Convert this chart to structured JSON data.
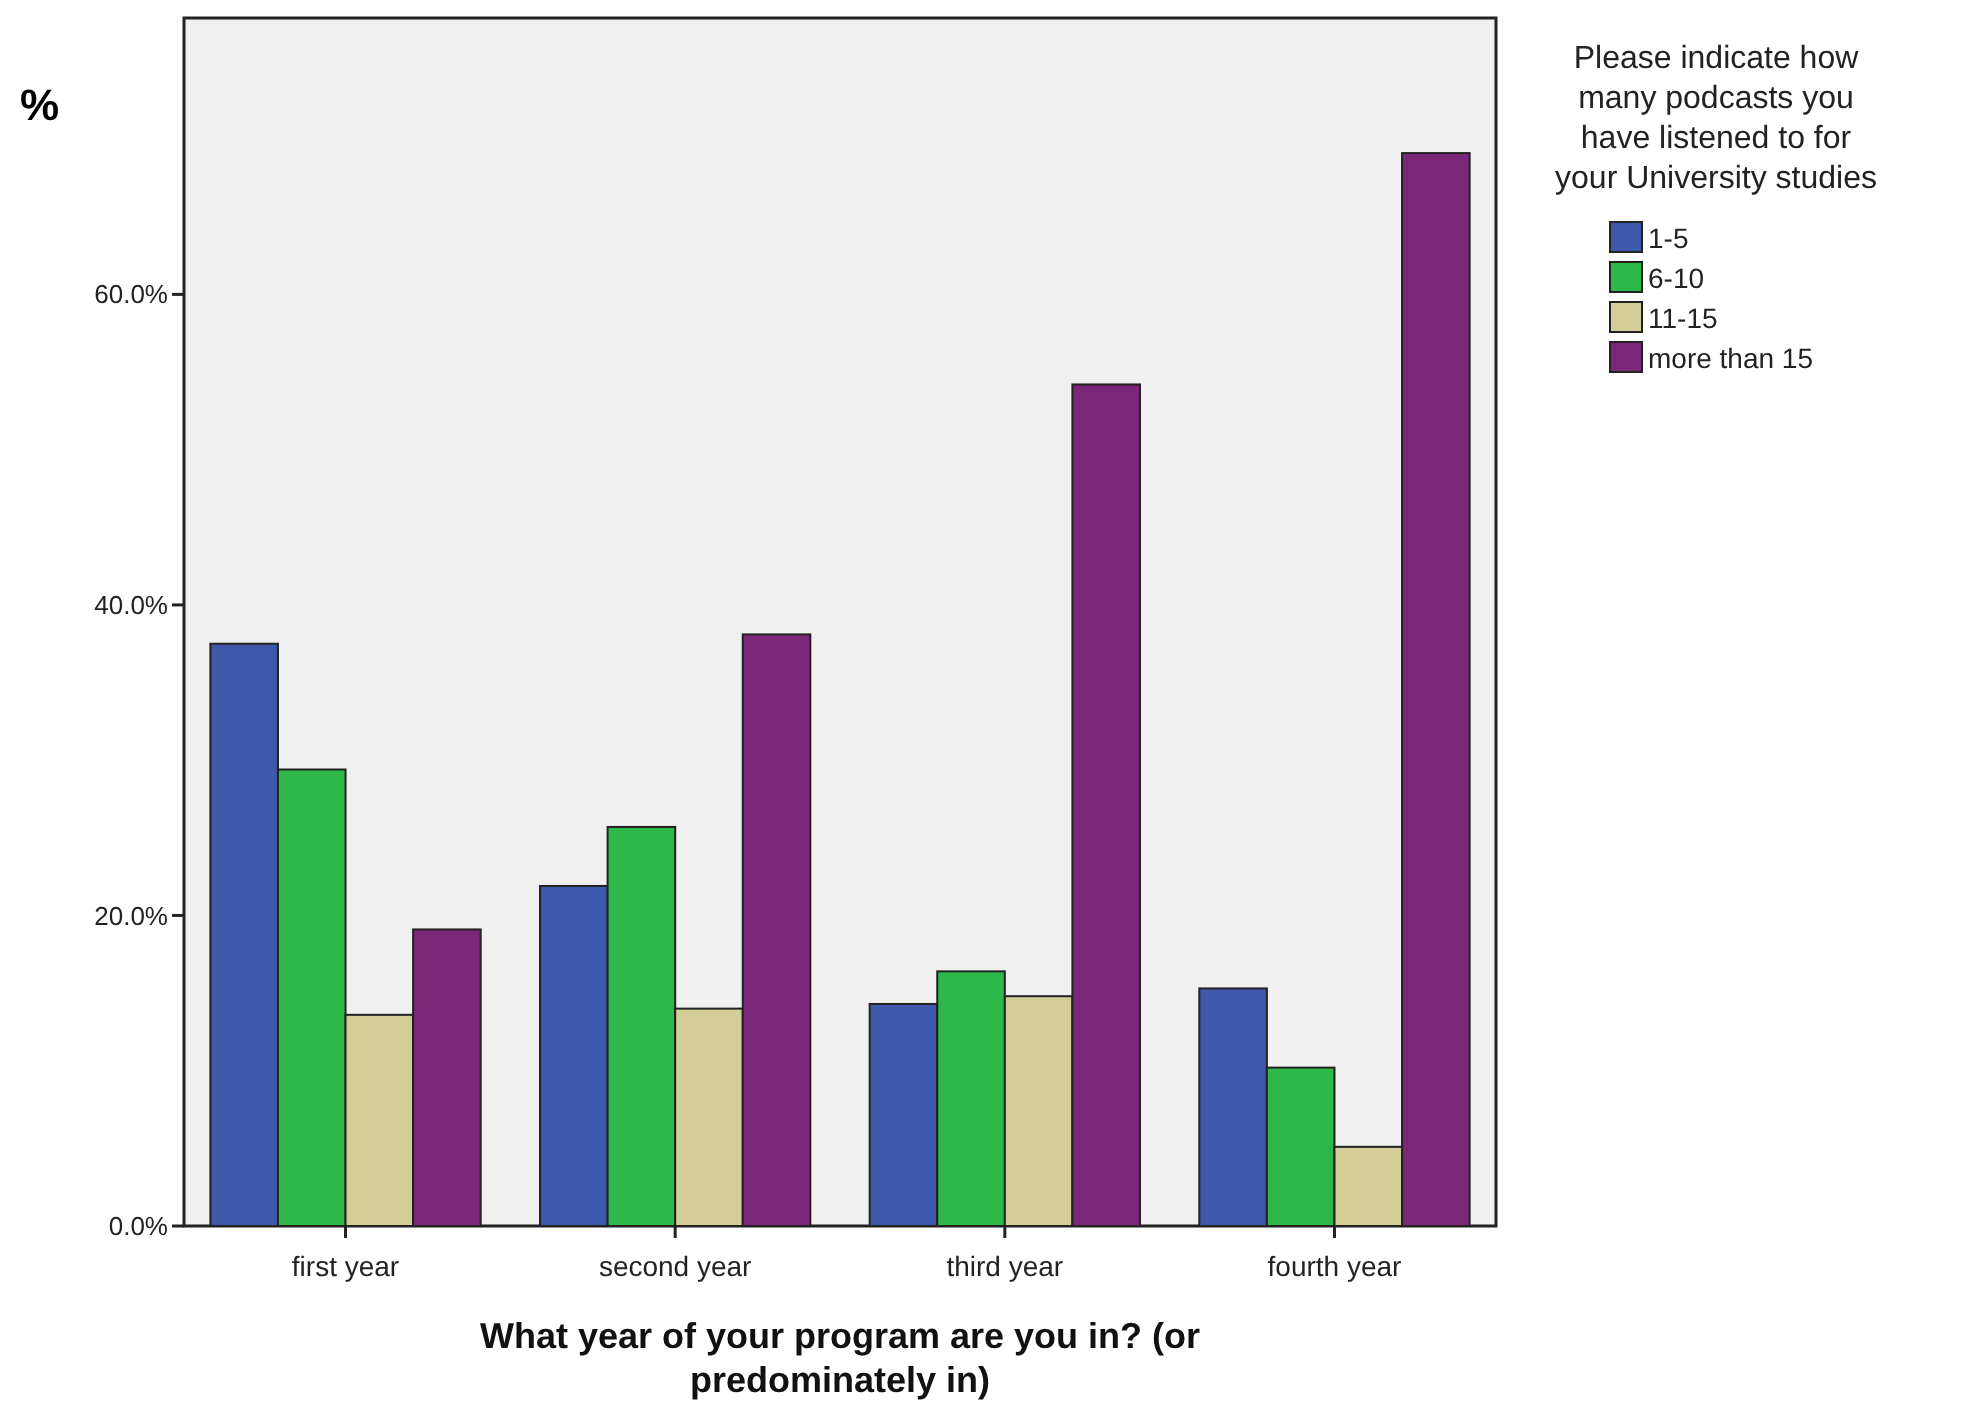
{
  "chart_data": {
    "type": "bar",
    "ylabel": "%",
    "xlabel": "What year of your program are you in? (or\npredominately in)",
    "legend_title": "Please indicate how\nmany podcasts you\nhave listened to for\nyour University studies",
    "legend": "top right",
    "categories": [
      "first year",
      "second year",
      "third year",
      "fourth year"
    ],
    "series": [
      {
        "name": "1-5",
        "color": "#3e58ac",
        "values": [
          37.5,
          21.9,
          14.3,
          15.3
        ]
      },
      {
        "name": "6-10",
        "color": "#2eb84a",
        "values": [
          29.4,
          25.7,
          16.4,
          10.2
        ]
      },
      {
        "name": "11-15",
        "color": "#d3ce97",
        "values": [
          13.6,
          14.0,
          14.8,
          5.1
        ]
      },
      {
        "name": "more than 15",
        "color": "#7b2779",
        "values": [
          19.1,
          38.1,
          54.2,
          69.1
        ]
      }
    ],
    "ylim": [
      0,
      77.8
    ],
    "yticks": [
      {
        "value": 0,
        "label": "0.0%"
      },
      {
        "value": 20,
        "label": "20.0%"
      },
      {
        "value": 40,
        "label": "40.0%"
      },
      {
        "value": 60,
        "label": "60.0%"
      }
    ]
  }
}
